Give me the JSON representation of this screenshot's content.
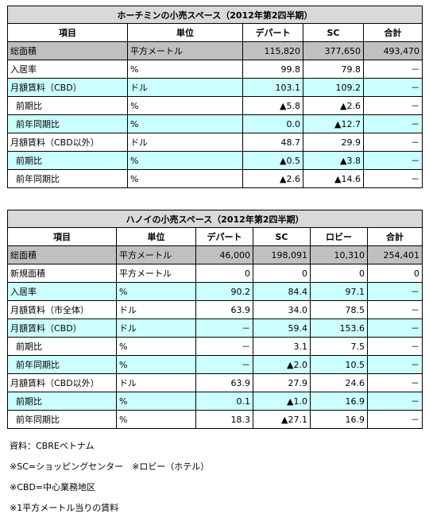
{
  "hcmc": {
    "title": "ホーチミンの小売スペース（2012年第2四半期）",
    "headers": [
      "項目",
      "単位",
      "デパート",
      "SC",
      "合計"
    ],
    "rows": [
      {
        "label": "総面積",
        "unit": "平方メートル",
        "values": [
          "115,820",
          "377,650",
          "493,470"
        ],
        "style": "gray",
        "indent": false
      },
      {
        "label": "入居率",
        "unit": "%",
        "values": [
          "99.8",
          "79.8",
          "－"
        ],
        "style": "white",
        "indent": false
      },
      {
        "label": "月額賃料（CBD）",
        "unit": "ドル",
        "values": [
          "103.1",
          "109.2",
          "－"
        ],
        "style": "cyan",
        "indent": false
      },
      {
        "label": "前期比",
        "unit": "%",
        "values": [
          "▲5.8",
          "▲2.6",
          "－"
        ],
        "style": "white",
        "indent": true
      },
      {
        "label": "前年同期比",
        "unit": "%",
        "values": [
          "0.0",
          "▲12.7",
          "－"
        ],
        "style": "cyan",
        "indent": true
      },
      {
        "label": "月額賃料（CBD以外）",
        "unit": "ドル",
        "values": [
          "48.7",
          "29.9",
          "－"
        ],
        "style": "white",
        "indent": false
      },
      {
        "label": "前期比",
        "unit": "%",
        "values": [
          "▲0.5",
          "▲3.8",
          "－"
        ],
        "style": "cyan",
        "indent": true
      },
      {
        "label": "前年同期比",
        "unit": "%",
        "values": [
          "▲2.6",
          "▲14.6",
          "－"
        ],
        "style": "white",
        "indent": true
      }
    ]
  },
  "hanoi": {
    "title": "ハノイの小売スペース（2012年第2四半期）",
    "headers": [
      "項目",
      "単位",
      "デパート",
      "SC",
      "ロビー",
      "合計"
    ],
    "rows": [
      {
        "label": "総面積",
        "unit": "平方メートル",
        "values": [
          "46,000",
          "198,091",
          "10,310",
          "254,401"
        ],
        "style": "gray",
        "indent": false
      },
      {
        "label": "新規面積",
        "unit": "平方メートル",
        "values": [
          "0",
          "0",
          "0",
          "0"
        ],
        "style": "white",
        "indent": false
      },
      {
        "label": "入居率",
        "unit": "%",
        "values": [
          "90.2",
          "84.4",
          "97.1",
          "－"
        ],
        "style": "cyan",
        "indent": false
      },
      {
        "label": "月額賃料（市全体）",
        "unit": "ドル",
        "values": [
          "63.9",
          "34.0",
          "78.5",
          "－"
        ],
        "style": "white",
        "indent": false
      },
      {
        "label": "月額賃料（CBD）",
        "unit": "ドル",
        "values": [
          "－",
          "59.4",
          "153.6",
          "－"
        ],
        "style": "cyan",
        "indent": false
      },
      {
        "label": "前期比",
        "unit": "%",
        "values": [
          "－",
          "3.1",
          "7.5",
          "－"
        ],
        "style": "white",
        "indent": true
      },
      {
        "label": "前年同期比",
        "unit": "%",
        "values": [
          "－",
          "▲2.0",
          "10.5",
          "－"
        ],
        "style": "cyan",
        "indent": true
      },
      {
        "label": "月額賃料（CBD以外）",
        "unit": "ドル",
        "values": [
          "63.9",
          "27.9",
          "24.6",
          "－"
        ],
        "style": "white",
        "indent": false
      },
      {
        "label": "前期比",
        "unit": "%",
        "values": [
          "0.1",
          "▲1.0",
          "16.9",
          "－"
        ],
        "style": "cyan",
        "indent": true
      },
      {
        "label": "前年同期比",
        "unit": "%",
        "values": [
          "18.3",
          "▲27.1",
          "16.9",
          "－"
        ],
        "style": "white",
        "indent": true
      }
    ]
  },
  "notes": [
    "資料：CBREベトナム",
    "※SC=ショッピングセンター　※ロビー（ホテル）",
    "※CBD=中心業務地区",
    "※1平方メートル当りの賃料"
  ]
}
